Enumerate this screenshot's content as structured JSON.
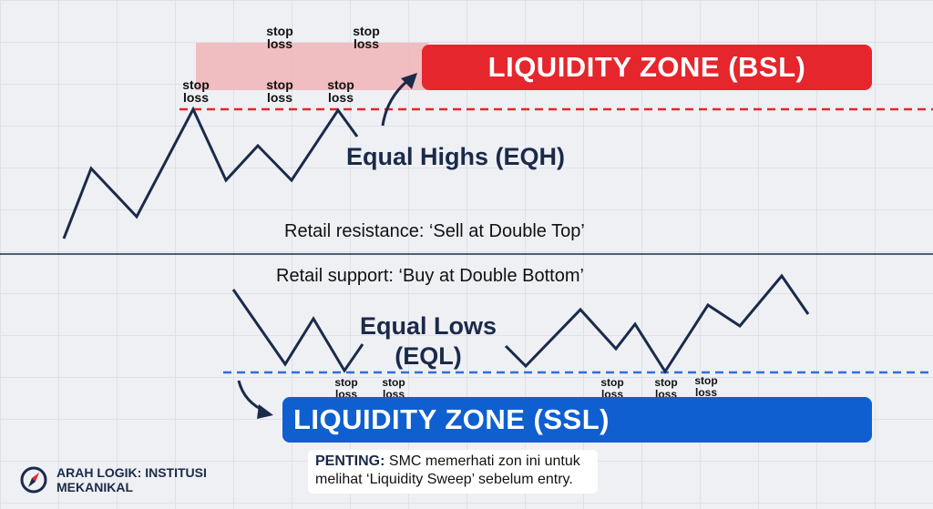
{
  "stop_loss": "stop\nloss",
  "stop_loss_lines": [
    "stop",
    "loss"
  ],
  "bsl_zone": "LIQUIDITY ZONE (BSL)",
  "ssl_zone": "LIQUIDITY ZONE (SSL)",
  "eqh": "Equal Highs (EQH)",
  "eql_line1": "Equal Lows",
  "eql_line2": "(EQL)",
  "retail_resistance": "Retail resistance: ‘Sell at Double Top’",
  "retail_support": "Retail support: ‘Buy at Double Bottom’",
  "note": {
    "bold": "PENTING:",
    "line1": " SMC memerhati zon ini untuk",
    "line2": "melihat ‘Liquidity Sweep’ sebelum entry."
  },
  "brand": {
    "line1": "ARAH LOGIK: INSTITUSI",
    "line2": "MEKANIKAL",
    "icon": "compass-icon"
  },
  "colors": {
    "bsl": "#e5262c",
    "ssl": "#0f5fd0",
    "navy": "#1b2a4a",
    "bsl_shade": "#f0b7bb"
  }
}
